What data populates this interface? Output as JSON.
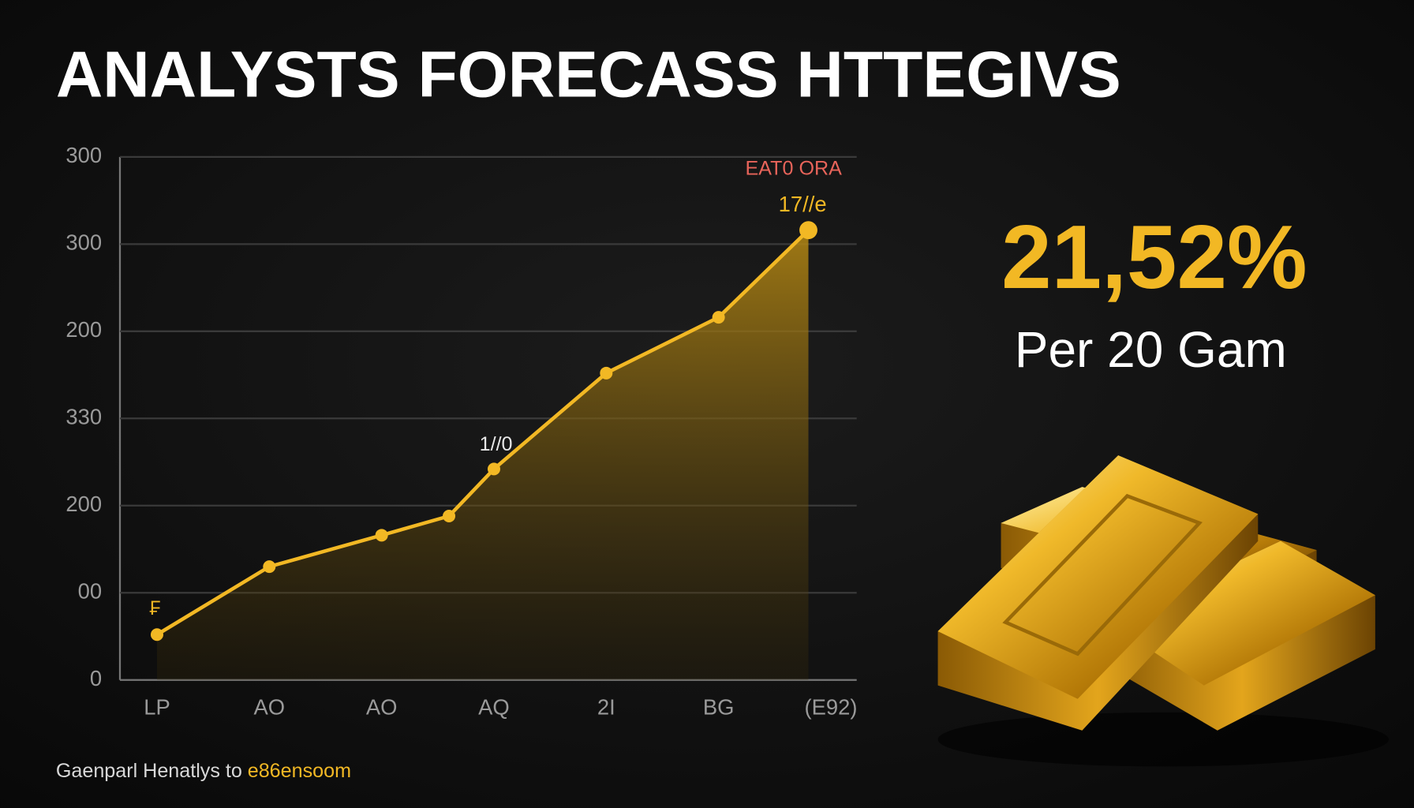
{
  "chart_data": {
    "type": "line",
    "title": "ANALYSTS FORECASS HTTEGIVS",
    "x": [
      0,
      1,
      2,
      2.6,
      3,
      4,
      5,
      5.8
    ],
    "series": [
      {
        "name": null,
        "color": "#f2b824",
        "values": [
          26,
          65,
          83,
          94,
          121,
          176,
          208,
          258
        ]
      }
    ],
    "xlim": [
      -0.33,
      6.23
    ],
    "xticks": [
      {
        "value": 0,
        "label": "LP"
      },
      {
        "value": 1,
        "label": "AO"
      },
      {
        "value": 2,
        "label": "AO"
      },
      {
        "value": 3,
        "label": "AQ"
      },
      {
        "value": 4,
        "label": "2I"
      },
      {
        "value": 5,
        "label": "BG"
      },
      {
        "value": 6,
        "label": "(E92)"
      }
    ],
    "ylim": [
      0,
      300
    ],
    "yticks": [
      0,
      {
        "value": 50,
        "label": "00"
      },
      {
        "value": 100,
        "label": "200"
      },
      {
        "value": 150,
        "label": "330"
      },
      200,
      {
        "value": 250,
        "label": "300"
      },
      300
    ],
    "grid": true,
    "annotations": [
      "EAT0 ORA",
      "17//e",
      "1//0",
      "₣"
    ],
    "callout": {
      "value": "21,52%",
      "label": "Per 20 Gam"
    },
    "footer": [
      "Gaenparl Henatlys to",
      "e86ensoom"
    ]
  }
}
